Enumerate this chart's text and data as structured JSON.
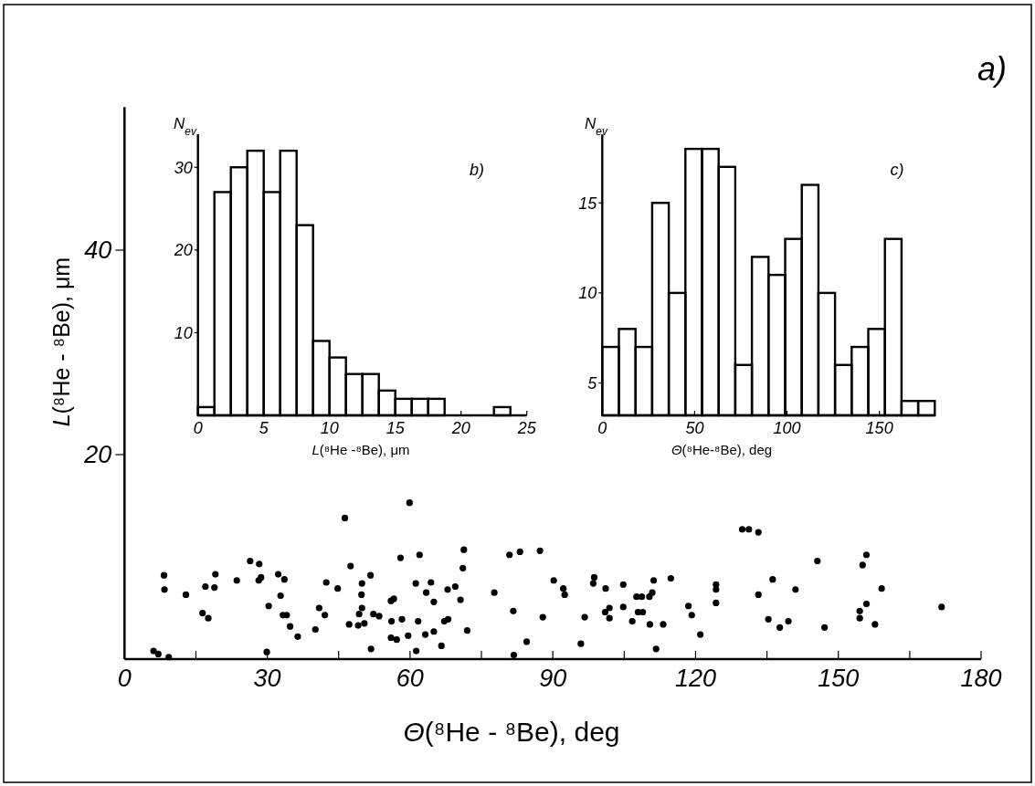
{
  "chart_data": [
    {
      "type": "scatter",
      "xlabel": "Θ(⁸He - ⁸Be), deg",
      "ylabel": "L(⁸He - ⁸Be), μm",
      "xlim": [
        0,
        180
      ],
      "ylim": [
        0,
        54
      ],
      "xticks": [
        0,
        {
          "value": 15,
          "label": null
        },
        30,
        {
          "value": 45,
          "label": null
        },
        60,
        {
          "value": 75,
          "label": null
        },
        90,
        {
          "value": 105,
          "label": null
        },
        120,
        {
          "value": 135,
          "label": null
        },
        150,
        {
          "value": 165,
          "label": null
        },
        180
      ],
      "yticks": [
        20,
        40
      ],
      "marker": "circle",
      "color": "#000000",
      "annotations": [
        "a)"
      ],
      "x": [
        6.1,
        7.1,
        9.3,
        8.3,
        8.4,
        12.9,
        16.4,
        17.6,
        17.0,
        18.9,
        19.1,
        23.6,
        26.4,
        28.3,
        28.2,
        28.7,
        30.3,
        29.9,
        32.3,
        33.6,
        32.8,
        33.3,
        34.1,
        34.8,
        36.4,
        40.1,
        40.9,
        42.1,
        42.4,
        44.8,
        46.3,
        47.5,
        47.2,
        49.1,
        50.4,
        49.3,
        49.9,
        49.8,
        49.9,
        51.7,
        51.8,
        52.3,
        53.5,
        56.0,
        56.6,
        56.1,
        58.3,
        56.0,
        57.2,
        59.6,
        58.0,
        59.9,
        61.2,
        62.0,
        61.7,
        61.3,
        63.4,
        64.4,
        65.0,
        63.2,
        65.0,
        66.6,
        67.2,
        68.0,
        67.9,
        69.5,
        70.6,
        71.1,
        71.3,
        72.0,
        77.7,
        80.9,
        83.1,
        81.7,
        81.8,
        84.5,
        87.3,
        87.9,
        90.2,
        92.2,
        92.5,
        95.9,
        96.7,
        98.7,
        98.5,
        101.1,
        101.0,
        101.9,
        101.9,
        104.8,
        104.8,
        106.7,
        107.6,
        108.7,
        107.9,
        108.9,
        110.4,
        110.3,
        110.9,
        111.2,
        111.7,
        113.2,
        114.8,
        118.5,
        119.2,
        121.0,
        124.3,
        124.3,
        124.3,
        129.8,
        131.2,
        133.2,
        133.2,
        135.3,
        136.2,
        137.7,
        139.5,
        141.0,
        145.6,
        147.1,
        154.5,
        154.5,
        155.1,
        155.9,
        155.9,
        157.7,
        159.1,
        171.7
      ],
      "values": [
        0.8,
        0.5,
        0.2,
        8.2,
        6.8,
        6.3,
        4.5,
        4.0,
        7.1,
        7.0,
        8.3,
        7.7,
        9.6,
        9.3,
        7.7,
        8.0,
        5.2,
        0.7,
        8.3,
        7.8,
        6.2,
        4.3,
        4.3,
        3.2,
        2.2,
        2.9,
        5.0,
        4.3,
        7.5,
        6.9,
        13.8,
        9.1,
        3.4,
        3.3,
        3.5,
        4.4,
        5.0,
        6.3,
        7.4,
        8.2,
        1.0,
        4.4,
        4.2,
        5.7,
        5.9,
        3.7,
        3.9,
        2.1,
        1.9,
        2.3,
        9.9,
        15.3,
        7.4,
        10.2,
        3.7,
        0.8,
        6.5,
        7.5,
        5.6,
        2.4,
        2.7,
        1.3,
        3.7,
        3.9,
        6.8,
        7.1,
        5.8,
        8.9,
        10.7,
        2.8,
        6.5,
        10.2,
        10.5,
        4.7,
        0.4,
        1.7,
        10.6,
        4.1,
        7.7,
        6.9,
        6.3,
        1.5,
        4.1,
        8.0,
        7.4,
        6.9,
        4.6,
        5.0,
        4.0,
        7.3,
        5.1,
        3.7,
        6.1,
        6.1,
        4.6,
        4.6,
        3.4,
        6.1,
        6.5,
        7.7,
        1.0,
        3.4,
        7.9,
        5.2,
        4.3,
        2.4,
        7.3,
        6.8,
        5.5,
        12.7,
        12.7,
        12.4,
        6.3,
        3.9,
        7.8,
        3.1,
        3.7,
        6.8,
        9.6,
        3.1,
        4.7,
        4.0,
        9.2,
        10.2,
        5.4,
        3.4,
        6.9,
        5.1
      ]
    },
    {
      "type": "histogram",
      "xlabel": "L(⁸He -⁸Be), μm",
      "ylabel": "N$_{ev}$",
      "xlim": [
        0,
        25
      ],
      "ylim": [
        0,
        34
      ],
      "xticks": [
        0,
        5,
        10,
        15,
        20,
        25
      ],
      "yticks": [
        10,
        20,
        30
      ],
      "color": "#000000",
      "annotations": [
        "b)"
      ],
      "bins": [
        0,
        1.25,
        2.5,
        3.75,
        5,
        6.25,
        7.5,
        8.75,
        10,
        11.25,
        12.5,
        13.75,
        15,
        16.25,
        17.5,
        18.75,
        20,
        21.25,
        22.5,
        23.75,
        25
      ],
      "values": [
        1,
        27,
        30,
        32,
        27,
        32,
        23,
        9,
        7,
        5,
        5,
        3,
        2,
        2,
        2,
        0,
        0,
        0,
        1,
        0
      ]
    },
    {
      "type": "histogram",
      "xlabel": "Θ(⁸He-⁸Be), deg",
      "ylabel": "N$_{ev}$",
      "xlim": [
        0,
        180
      ],
      "ylim": [
        3.2,
        18.8
      ],
      "xticks": [
        0,
        50,
        100,
        150
      ],
      "yticks": [
        5,
        10,
        15
      ],
      "color": "#000000",
      "annotations": [
        "c)"
      ],
      "bins": [
        0,
        9,
        18,
        27,
        36,
        45,
        54,
        63,
        72,
        81,
        90,
        99,
        108,
        117,
        126,
        135,
        144,
        153,
        162,
        171,
        180
      ],
      "values": [
        7,
        8,
        7,
        15,
        10,
        18,
        18,
        17,
        6,
        12,
        11,
        13,
        16,
        10,
        6,
        7,
        8,
        13,
        4,
        4
      ]
    }
  ]
}
